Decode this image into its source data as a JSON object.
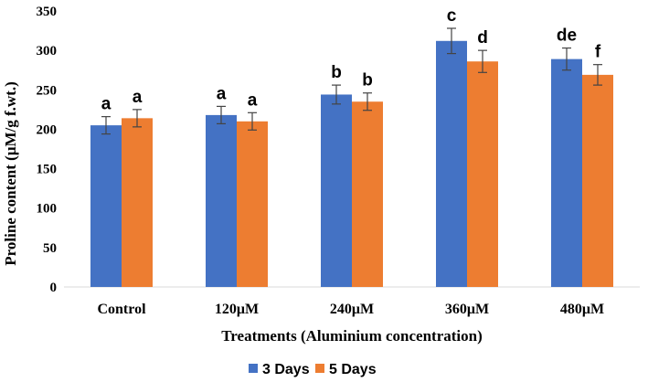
{
  "chart_data": {
    "type": "bar",
    "title": "",
    "xlabel": "Treatments  (Aluminium  concentration)",
    "ylabel": "Proline content  (μM/g  f.wt.)",
    "ylim": [
      0,
      350
    ],
    "yticks": [
      "0",
      "50",
      "100",
      "150",
      "200",
      "250",
      "300",
      "350"
    ],
    "categories": [
      "Control",
      "120μM",
      "240μM",
      "360μM",
      "480μM"
    ],
    "series": [
      {
        "name": "3 Days",
        "color": "#4472C4",
        "values": [
          205,
          218,
          244,
          312,
          289
        ],
        "errors": [
          11,
          11,
          12,
          16,
          14
        ],
        "labels": [
          "a",
          "a",
          "b",
          "c",
          "de"
        ]
      },
      {
        "name": "5 Days",
        "color": "#ED7D31",
        "values": [
          214,
          210,
          235,
          286,
          269
        ],
        "errors": [
          11,
          11,
          11,
          14,
          13
        ],
        "labels": [
          "a",
          "a",
          "b",
          "d",
          "f"
        ]
      }
    ],
    "grid": false,
    "legend_position": "bottom"
  }
}
